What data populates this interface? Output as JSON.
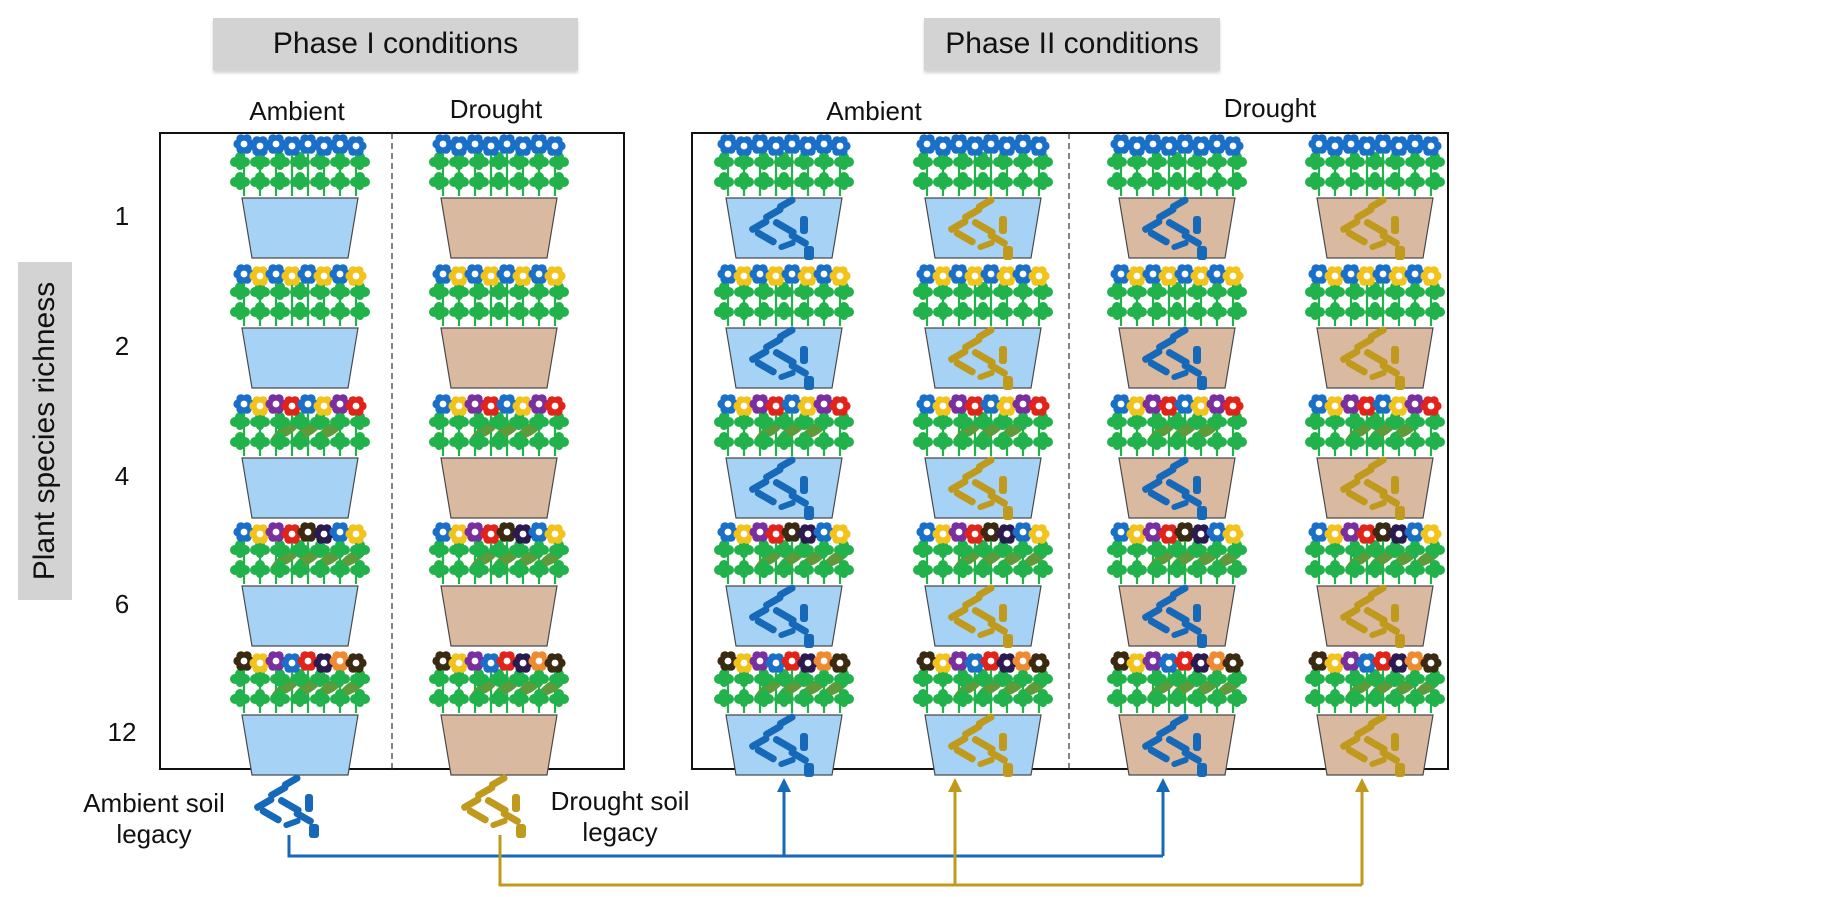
{
  "phase1": {
    "title": "Phase I conditions",
    "col_ambient": "Ambient",
    "col_drought": "Drought"
  },
  "phase2": {
    "title": "Phase II conditions",
    "col_ambient": "Ambient",
    "col_drought": "Drought"
  },
  "y_axis": {
    "title": "Plant species richness"
  },
  "richness_levels": [
    "1",
    "2",
    "4",
    "6",
    "12"
  ],
  "legend": {
    "ambient_line1": "Ambient soil",
    "ambient_line2": "legacy",
    "drought_line1": "Drought soil",
    "drought_line2": "legacy"
  },
  "colors": {
    "ambient_pot": "#a6d3f5",
    "drought_pot": "#d9b9a0",
    "ambient_legacy": "#1668b8",
    "drought_legacy": "#c09a1c",
    "leaf": "#22b24c",
    "broad_leaf": "#5e9a3a",
    "header_bg": "#d3d3d3"
  },
  "flower_colors": {
    "1": [
      "#1a6fc9"
    ],
    "2": [
      "#1a6fc9",
      "#f2c31a"
    ],
    "4": [
      "#1a6fc9",
      "#f2c31a",
      "#7a2fa0",
      "#e2231a"
    ],
    "6": [
      "#1a6fc9",
      "#f2c31a",
      "#7a2fa0",
      "#e2231a",
      "#3a2a12",
      "#2a1a50"
    ],
    "12": [
      "#3a2a12",
      "#f2c31a",
      "#7a2fa0",
      "#1a6fc9",
      "#e2231a",
      "#2a1a50",
      "#f08a30",
      "#3a2a12"
    ]
  },
  "phase2_columns": [
    {
      "pot": "ambient",
      "legacy": "ambient"
    },
    {
      "pot": "ambient",
      "legacy": "drought"
    },
    {
      "pot": "drought",
      "legacy": "ambient"
    },
    {
      "pot": "drought",
      "legacy": "drought"
    }
  ]
}
